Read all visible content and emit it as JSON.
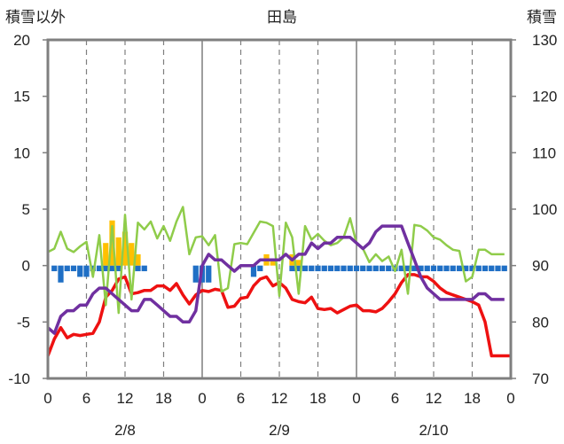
{
  "chart_data": {
    "type": "line",
    "title": "田島",
    "left_axis_label": "積雪以外",
    "right_axis_label": "積雪",
    "left_ylim": [
      -10,
      20
    ],
    "left_yticks": [
      20,
      15,
      10,
      5,
      0,
      -5,
      -10
    ],
    "right_ylim": [
      70,
      130
    ],
    "right_yticks": [
      130,
      120,
      110,
      100,
      90,
      80,
      70
    ],
    "x_range_hours": [
      0,
      72
    ],
    "x_tick_labels": [
      "0",
      "6",
      "12",
      "18",
      "0",
      "6",
      "12",
      "18",
      "0",
      "6",
      "12",
      "18",
      "0"
    ],
    "date_labels": [
      "2/8",
      "2/9",
      "2/10"
    ],
    "grid": "dashed vertical every 6h; solid at day boundaries",
    "series": [
      {
        "color": "#ee1111",
        "axis": "left",
        "x": [
          0,
          1,
          2,
          3,
          4,
          5,
          6,
          7,
          8,
          9,
          10,
          11,
          12,
          13,
          14,
          15,
          16,
          17,
          18,
          19,
          20,
          21,
          22,
          23,
          24,
          25,
          26,
          27,
          28,
          29,
          30,
          31,
          32,
          33,
          34,
          35,
          36,
          37,
          38,
          39,
          40,
          41,
          42,
          43,
          44,
          45,
          46,
          47,
          48,
          49,
          50,
          51,
          52,
          53,
          54,
          55,
          56,
          57,
          58,
          59,
          60,
          61,
          62,
          63,
          64,
          65,
          66,
          67,
          68,
          69,
          70,
          71,
          72
        ],
        "values": [
          -8.0,
          -6.5,
          -5.5,
          -6.4,
          -6.1,
          -6.2,
          -6.1,
          -6.0,
          -5.0,
          -2.8,
          -2.2,
          -1.2,
          -1.0,
          -2.5,
          -2.4,
          -2.2,
          -2.2,
          -1.8,
          -1.8,
          -2.2,
          -1.6,
          -2.6,
          -3.4,
          -2.6,
          -2.2,
          -2.3,
          -2.1,
          -2.2,
          -3.7,
          -3.6,
          -2.9,
          -2.8,
          -1.8,
          -1.2,
          -1.0,
          -1.8,
          -1.5,
          -2.0,
          -3.0,
          -3.2,
          -3.3,
          -2.8,
          -3.8,
          -3.9,
          -3.8,
          -4.2,
          -3.9,
          -3.6,
          -3.5,
          -4.0,
          -4.0,
          -4.1,
          -3.8,
          -3.2,
          -2.5,
          -1.5,
          -0.8,
          -0.8,
          -1.0,
          -1.0,
          -1.4,
          -2.0,
          -2.4,
          -2.6,
          -2.8,
          -3.0,
          -3.2,
          -3.5,
          -5.0,
          -8.0,
          -8.0,
          -8.0,
          -8.0
        ]
      },
      {
        "color": "#8fcc4a",
        "axis": "left",
        "x": [
          0,
          1,
          2,
          3,
          4,
          5,
          6,
          7,
          8,
          9,
          10,
          11,
          12,
          13,
          14,
          15,
          16,
          17,
          18,
          19,
          20,
          21,
          22,
          23,
          24,
          25,
          26,
          27,
          28,
          29,
          30,
          31,
          32,
          33,
          34,
          35,
          36,
          37,
          38,
          39,
          40,
          41,
          42,
          43,
          44,
          45,
          46,
          47,
          48,
          49,
          50,
          51,
          52,
          53,
          54,
          55,
          56,
          57,
          58,
          59,
          60,
          61,
          62,
          63,
          64,
          65,
          66,
          67,
          68,
          69,
          70,
          71
        ],
        "values": [
          1.2,
          1.5,
          3.0,
          1.5,
          1.2,
          1.7,
          2.1,
          -1.0,
          2.7,
          -3.5,
          3.5,
          -4.2,
          4.5,
          -3.0,
          3.8,
          3.2,
          3.9,
          2.4,
          3.5,
          2.2,
          3.9,
          5.2,
          1.0,
          2.5,
          2.6,
          1.8,
          2.7,
          -2.3,
          -2.0,
          1.9,
          2.0,
          1.9,
          2.9,
          3.9,
          3.8,
          3.5,
          -2.7,
          3.8,
          2.5,
          -2.5,
          3.5,
          2.3,
          2.8,
          2.2,
          1.8,
          2.0,
          2.5,
          4.2,
          2.0,
          1.5,
          0.3,
          1.0,
          0.4,
          0.8,
          -0.5,
          1.4,
          -2.5,
          3.6,
          3.5,
          3.1,
          2.5,
          2.3,
          1.8,
          1.4,
          1.3,
          -1.4,
          -1.0,
          1.4,
          1.4,
          1.0,
          1.0,
          1.0
        ]
      },
      {
        "color": "#7030a0",
        "axis": "right",
        "x": [
          0,
          1,
          2,
          3,
          4,
          5,
          6,
          7,
          8,
          9,
          10,
          11,
          12,
          13,
          14,
          15,
          16,
          17,
          18,
          19,
          20,
          21,
          22,
          23,
          24,
          25,
          26,
          27,
          28,
          29,
          30,
          31,
          32,
          33,
          34,
          35,
          36,
          37,
          38,
          39,
          40,
          41,
          42,
          43,
          44,
          45,
          46,
          47,
          48,
          49,
          50,
          51,
          52,
          53,
          54,
          55,
          56,
          57,
          58,
          59,
          60,
          61,
          62,
          63,
          64,
          65,
          66,
          67,
          68,
          69,
          70,
          71
        ],
        "values": [
          79,
          78,
          81,
          82,
          82,
          83,
          83,
          85,
          86,
          86,
          85,
          84,
          83,
          82,
          82,
          84,
          84,
          83,
          82,
          81,
          81,
          80,
          80,
          82,
          90,
          92,
          91,
          91,
          90,
          89,
          90,
          90,
          90,
          91,
          91,
          91,
          91,
          92,
          91,
          92,
          92,
          94,
          93,
          94,
          94,
          95,
          95,
          95,
          94,
          93,
          94,
          96,
          97,
          97,
          97,
          97,
          94,
          91,
          88,
          86,
          85,
          84,
          84,
          84,
          84,
          84,
          84,
          85,
          85,
          84,
          84,
          84
        ]
      }
    ],
    "bars": [
      {
        "color": "#1f6fc5",
        "axis": "left",
        "x": [
          1,
          2,
          3,
          4,
          5,
          6,
          7,
          8,
          9,
          10,
          11,
          14,
          15,
          23,
          24,
          25,
          32,
          33,
          38,
          39,
          40,
          41,
          42,
          43,
          44,
          45,
          46,
          47,
          48,
          49,
          50,
          51,
          52,
          53,
          54,
          55,
          56,
          57,
          58,
          59,
          60,
          61,
          62,
          63,
          64,
          65,
          66,
          67,
          68,
          69,
          70,
          71
        ],
        "values": [
          -0.5,
          -1.5,
          -0.5,
          -0.5,
          -1.0,
          -1.0,
          -0.5,
          -0.5,
          -0.5,
          -0.5,
          -0.5,
          -0.5,
          -0.5,
          -1.5,
          -1.5,
          -1.5,
          -1.0,
          -0.5,
          -0.5,
          -0.5,
          -0.5,
          -0.5,
          -0.5,
          -0.5,
          -0.5,
          -0.5,
          -0.5,
          -0.5,
          -0.5,
          -0.5,
          -0.5,
          -0.5,
          -0.5,
          -0.5,
          -0.5,
          -0.5,
          -0.5,
          -0.5,
          -0.5,
          -0.5,
          -0.5,
          -0.5,
          -0.5,
          -0.5,
          -0.5,
          -0.5,
          -0.5,
          -0.5,
          -0.5,
          -0.5,
          -0.5,
          -0.5
        ]
      },
      {
        "color": "#ffc000",
        "axis": "left",
        "x": [
          9,
          10,
          11,
          12,
          13,
          14,
          34,
          35,
          38,
          39
        ],
        "values": [
          2.0,
          4.0,
          2.5,
          3.0,
          2.0,
          1.0,
          1.0,
          0.5,
          1.0,
          0.5
        ]
      }
    ]
  }
}
